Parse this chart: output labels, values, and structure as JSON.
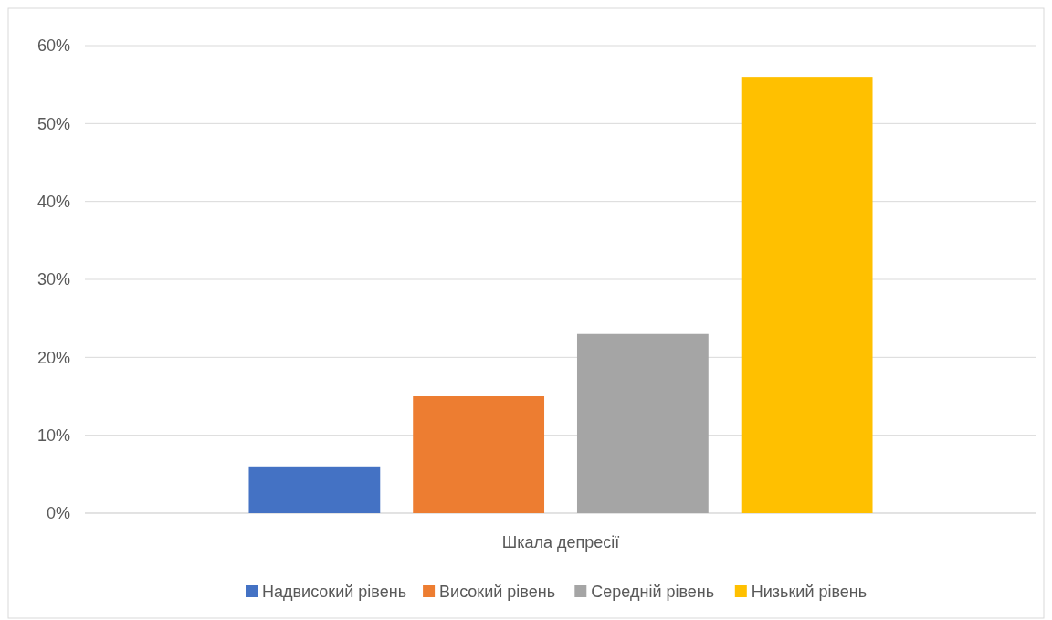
{
  "chart_data": {
    "type": "bar",
    "categories": [
      "Шкала депресії"
    ],
    "series": [
      {
        "name": "Надвисокий рівень",
        "color": "#4472c4",
        "values": [
          6
        ]
      },
      {
        "name": "Високий рівень",
        "color": "#ed7d31",
        "values": [
          15
        ]
      },
      {
        "name": "Середній рівень",
        "color": "#a5a5a5",
        "values": [
          23
        ]
      },
      {
        "name": "Низький рівень",
        "color": "#ffc000",
        "values": [
          56
        ]
      }
    ],
    "ylim": [
      0,
      60
    ],
    "yticks": [
      {
        "value": 0,
        "label": "0%"
      },
      {
        "value": 10,
        "label": "10%"
      },
      {
        "value": 20,
        "label": "20%"
      },
      {
        "value": 30,
        "label": "30%"
      },
      {
        "value": 40,
        "label": "40%"
      },
      {
        "value": 50,
        "label": "50%"
      },
      {
        "value": 60,
        "label": "60%"
      }
    ],
    "grid": "y",
    "legend": "bottom"
  }
}
